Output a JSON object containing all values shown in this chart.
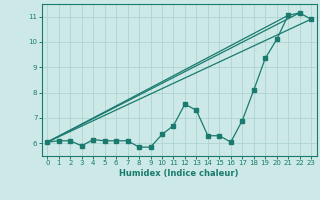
{
  "xlabel": "Humidex (Indice chaleur)",
  "ylabel": "",
  "bg_color": "#cce9e7",
  "grid_color": "#aed4d1",
  "line_color": "#1a7a6e",
  "xlim": [
    -0.5,
    23.5
  ],
  "ylim": [
    5.5,
    11.5
  ],
  "xticks": [
    0,
    1,
    2,
    3,
    4,
    5,
    6,
    7,
    8,
    9,
    10,
    11,
    12,
    13,
    14,
    15,
    16,
    17,
    18,
    19,
    20,
    21,
    22,
    23
  ],
  "yticks": [
    6,
    7,
    8,
    9,
    10,
    11
  ],
  "series1_x": [
    0,
    1,
    2,
    3,
    4,
    5,
    6,
    7,
    8,
    9,
    10,
    11,
    12,
    13,
    14,
    15,
    16,
    17,
    18,
    19,
    20,
    21,
    22,
    23
  ],
  "series1_y": [
    6.05,
    6.1,
    6.1,
    5.9,
    6.15,
    6.1,
    6.1,
    6.1,
    5.85,
    5.85,
    6.35,
    6.7,
    7.55,
    7.3,
    6.3,
    6.3,
    6.05,
    6.9,
    8.1,
    9.35,
    10.1,
    11.05,
    11.15,
    10.9
  ],
  "line1_x": [
    0,
    23
  ],
  "line1_y": [
    6.05,
    10.9
  ],
  "line2_x": [
    0,
    21
  ],
  "line2_y": [
    6.05,
    11.05
  ],
  "line3_x": [
    0,
    22
  ],
  "line3_y": [
    6.05,
    11.15
  ]
}
